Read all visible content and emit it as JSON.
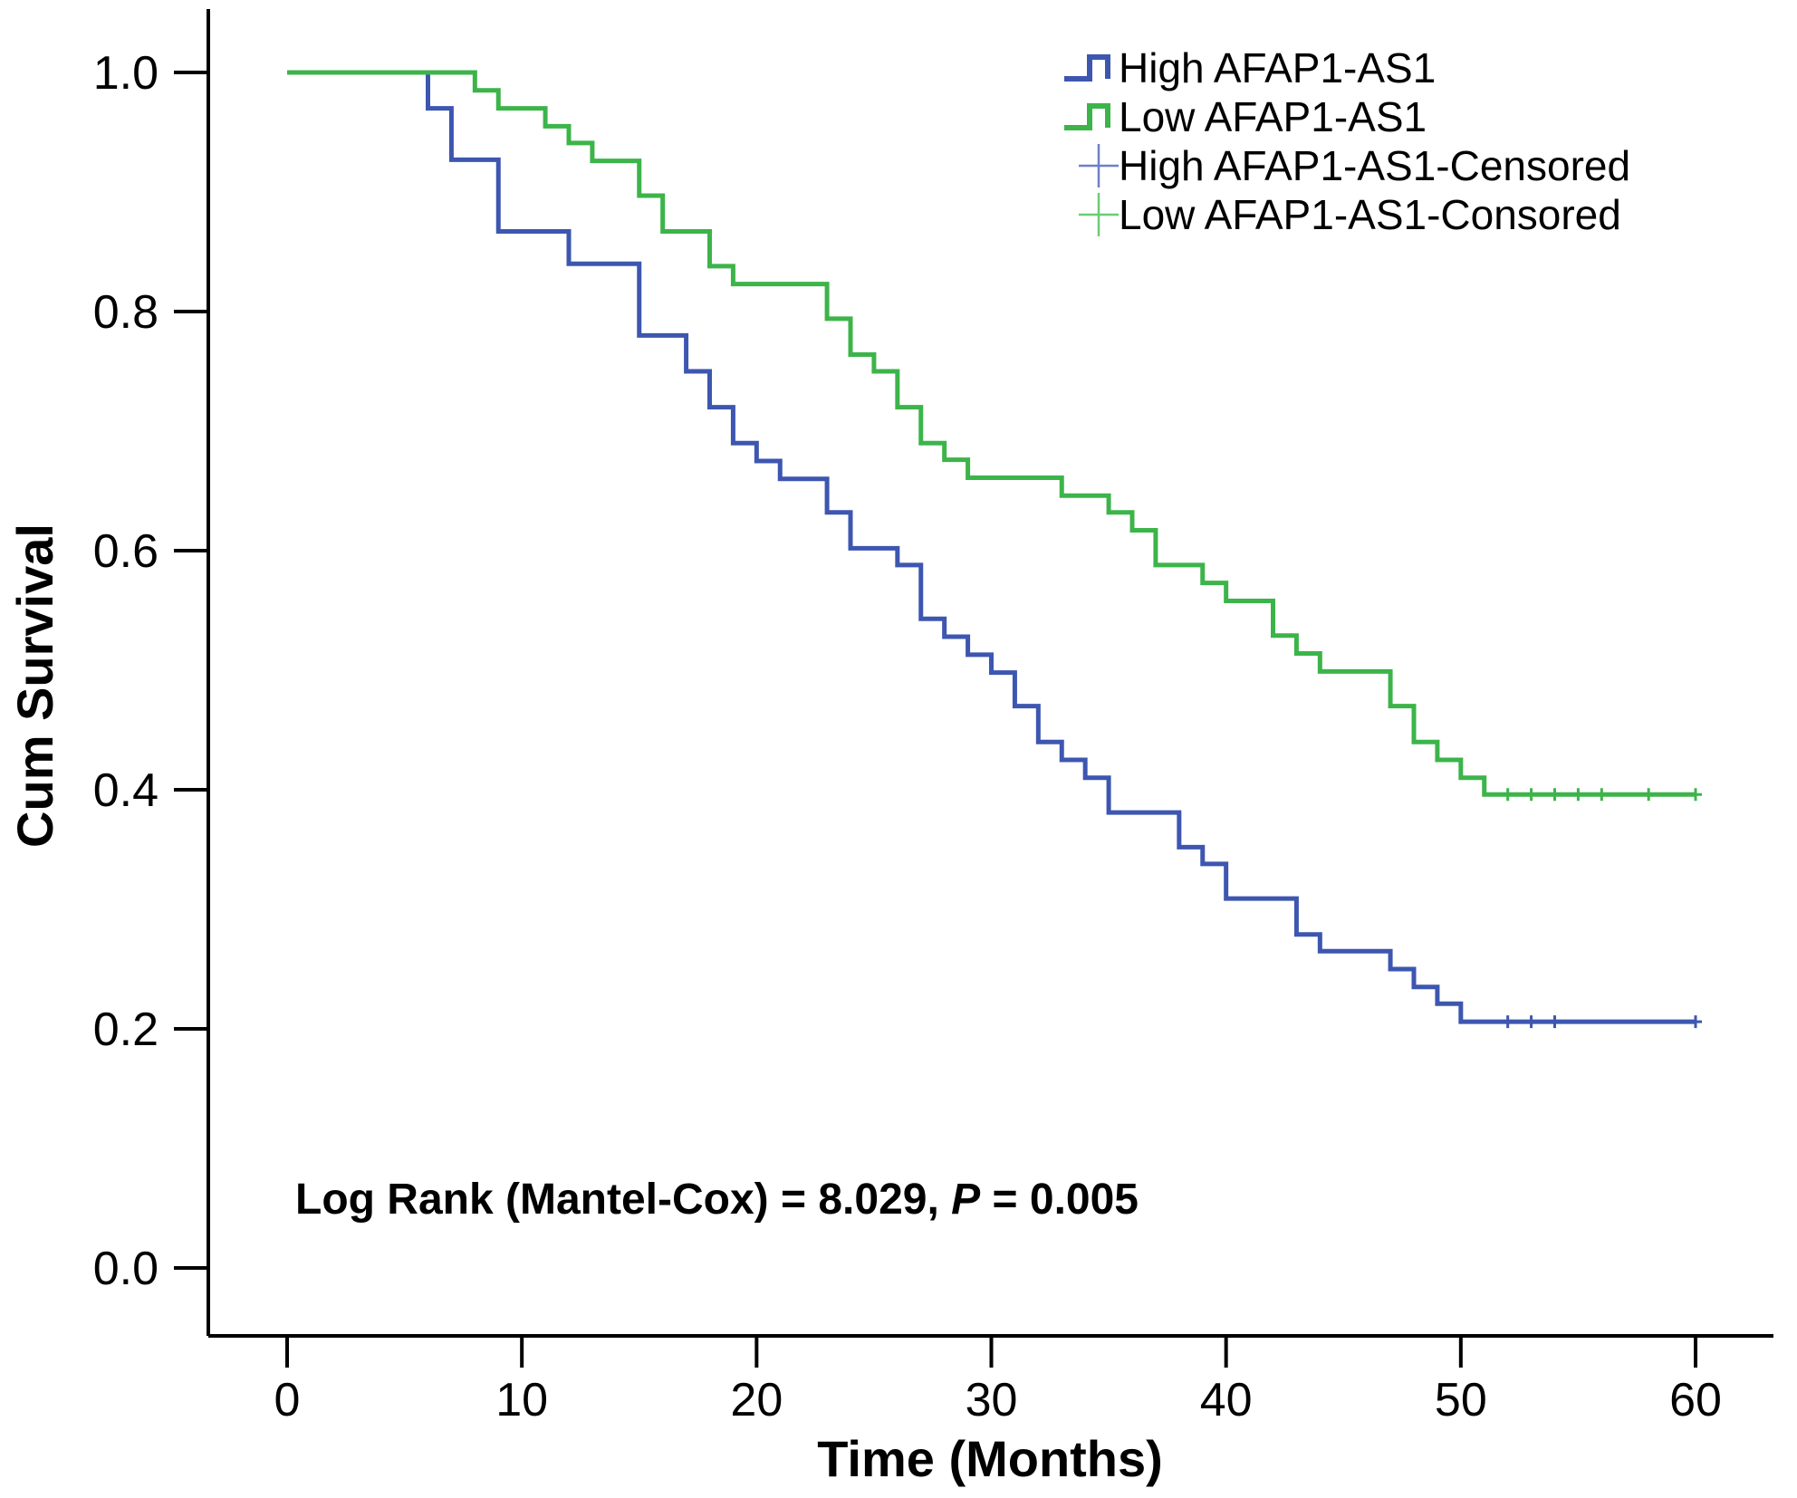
{
  "chart_data": {
    "type": "line",
    "xlabel": "Time (Months)",
    "ylabel": "Cum Survival",
    "xlim": [
      0,
      60
    ],
    "ylim": [
      0,
      1.0
    ],
    "xticks": [
      "0",
      "10",
      "20",
      "30",
      "40",
      "50",
      "60"
    ],
    "yticks": [
      "0.0",
      "0.2",
      "0.4",
      "0.6",
      "0.8",
      "1.0"
    ],
    "grid": false,
    "legend_position": "top-right",
    "annotation": {
      "prefix": "Log Rank (Mantel-Cox) = 8.029, ",
      "p_symbol": "P",
      "suffix": " = 0.005"
    },
    "legend": [
      {
        "label": "High AFAP1-AS1",
        "marker": "step",
        "color": "#3d56b0"
      },
      {
        "label": "Low AFAP1-AS1",
        "marker": "step",
        "color": "#3cb44a"
      },
      {
        "label": "High AFAP1-AS1-Censored",
        "marker": "plus",
        "color": "#6f7fc8"
      },
      {
        "label": "Low AFAP1-AS1-Consored",
        "marker": "plus",
        "color": "#6ccc72"
      }
    ],
    "series": [
      {
        "name": "High AFAP1-AS1",
        "color": "#3d56b0",
        "steps": [
          [
            0,
            1.0
          ],
          [
            6,
            0.97
          ],
          [
            7,
            0.927
          ],
          [
            9,
            0.867
          ],
          [
            12,
            0.84
          ],
          [
            15,
            0.78
          ],
          [
            17,
            0.75
          ],
          [
            18,
            0.72
          ],
          [
            19,
            0.69
          ],
          [
            20,
            0.675
          ],
          [
            21,
            0.66
          ],
          [
            23,
            0.632
          ],
          [
            24,
            0.602
          ],
          [
            26,
            0.588
          ],
          [
            27,
            0.543
          ],
          [
            28,
            0.528
          ],
          [
            29,
            0.513
          ],
          [
            30,
            0.498
          ],
          [
            31,
            0.47
          ],
          [
            32,
            0.44
          ],
          [
            33,
            0.425
          ],
          [
            34,
            0.41
          ],
          [
            35,
            0.381
          ],
          [
            38,
            0.352
          ],
          [
            39,
            0.338
          ],
          [
            40,
            0.309
          ],
          [
            43,
            0.279
          ],
          [
            44,
            0.265
          ],
          [
            47,
            0.25
          ],
          [
            48,
            0.235
          ],
          [
            49,
            0.221
          ],
          [
            50,
            0.206
          ]
        ],
        "end_x": 60,
        "censored": [
          52,
          53,
          54,
          60
        ]
      },
      {
        "name": "Low AFAP1-AS1",
        "color": "#3cb44a",
        "steps": [
          [
            0,
            1.0
          ],
          [
            8,
            0.985
          ],
          [
            9,
            0.97
          ],
          [
            11,
            0.955
          ],
          [
            12,
            0.941
          ],
          [
            13,
            0.926
          ],
          [
            15,
            0.897
          ],
          [
            16,
            0.867
          ],
          [
            18,
            0.838
          ],
          [
            19,
            0.823
          ],
          [
            23,
            0.794
          ],
          [
            24,
            0.764
          ],
          [
            25,
            0.75
          ],
          [
            26,
            0.72
          ],
          [
            27,
            0.69
          ],
          [
            28,
            0.676
          ],
          [
            29,
            0.661
          ],
          [
            33,
            0.646
          ],
          [
            35,
            0.632
          ],
          [
            36,
            0.617
          ],
          [
            37,
            0.588
          ],
          [
            39,
            0.573
          ],
          [
            40,
            0.558
          ],
          [
            42,
            0.529
          ],
          [
            43,
            0.514
          ],
          [
            44,
            0.499
          ],
          [
            47,
            0.47
          ],
          [
            48,
            0.44
          ],
          [
            49,
            0.425
          ],
          [
            50,
            0.41
          ],
          [
            51,
            0.396
          ]
        ],
        "end_x": 60,
        "censored": [
          52,
          53,
          54,
          55,
          56,
          58,
          60
        ]
      }
    ]
  }
}
